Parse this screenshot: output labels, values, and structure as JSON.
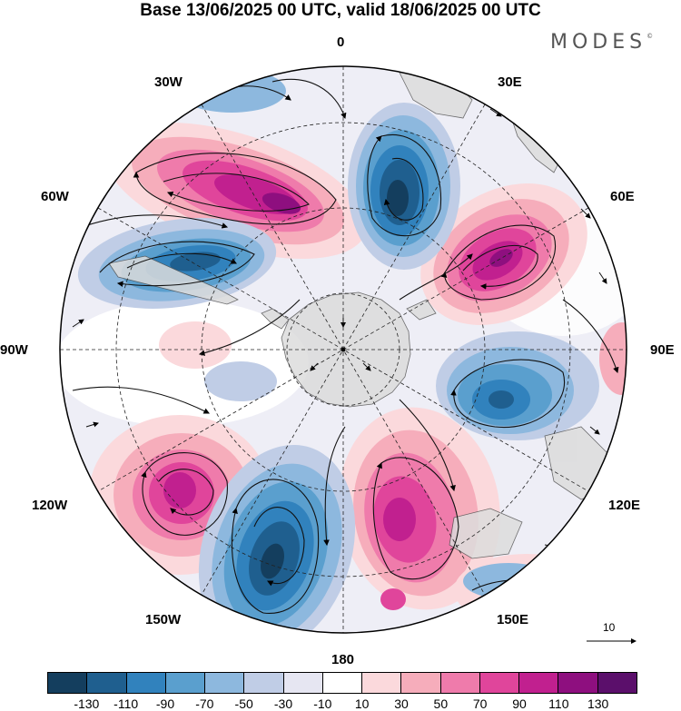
{
  "title": "Base 13/06/2025 00 UTC, valid 18/06/2025 00 UTC",
  "logo": "MODES",
  "logo_mark": "©",
  "longitude_labels": {
    "top": "0",
    "top_right": "30E",
    "upper_right": "60E",
    "right": "90E",
    "lower_right": "120E",
    "bottom_right": "150E",
    "bottom": "180",
    "bottom_left": "150W",
    "lower_left": "120W",
    "left": "90W",
    "upper_left": "60W",
    "top_left": "30W"
  },
  "vector_reference": "10",
  "colorbar": {
    "colors": [
      "#143e5e",
      "#1f5f8f",
      "#3182bd",
      "#5a9fce",
      "#8db8de",
      "#c0cde6",
      "#e6e6f2",
      "#ffffff",
      "#fbd9dc",
      "#f6adbb",
      "#ef7bab",
      "#e0459b",
      "#c1208f",
      "#8e0f7f",
      "#5b0f6b"
    ],
    "ticks": [
      "-130",
      "-110",
      "-90",
      "-70",
      "-50",
      "-30",
      "-10",
      "10",
      "30",
      "50",
      "70",
      "90",
      "110",
      "130"
    ]
  }
}
